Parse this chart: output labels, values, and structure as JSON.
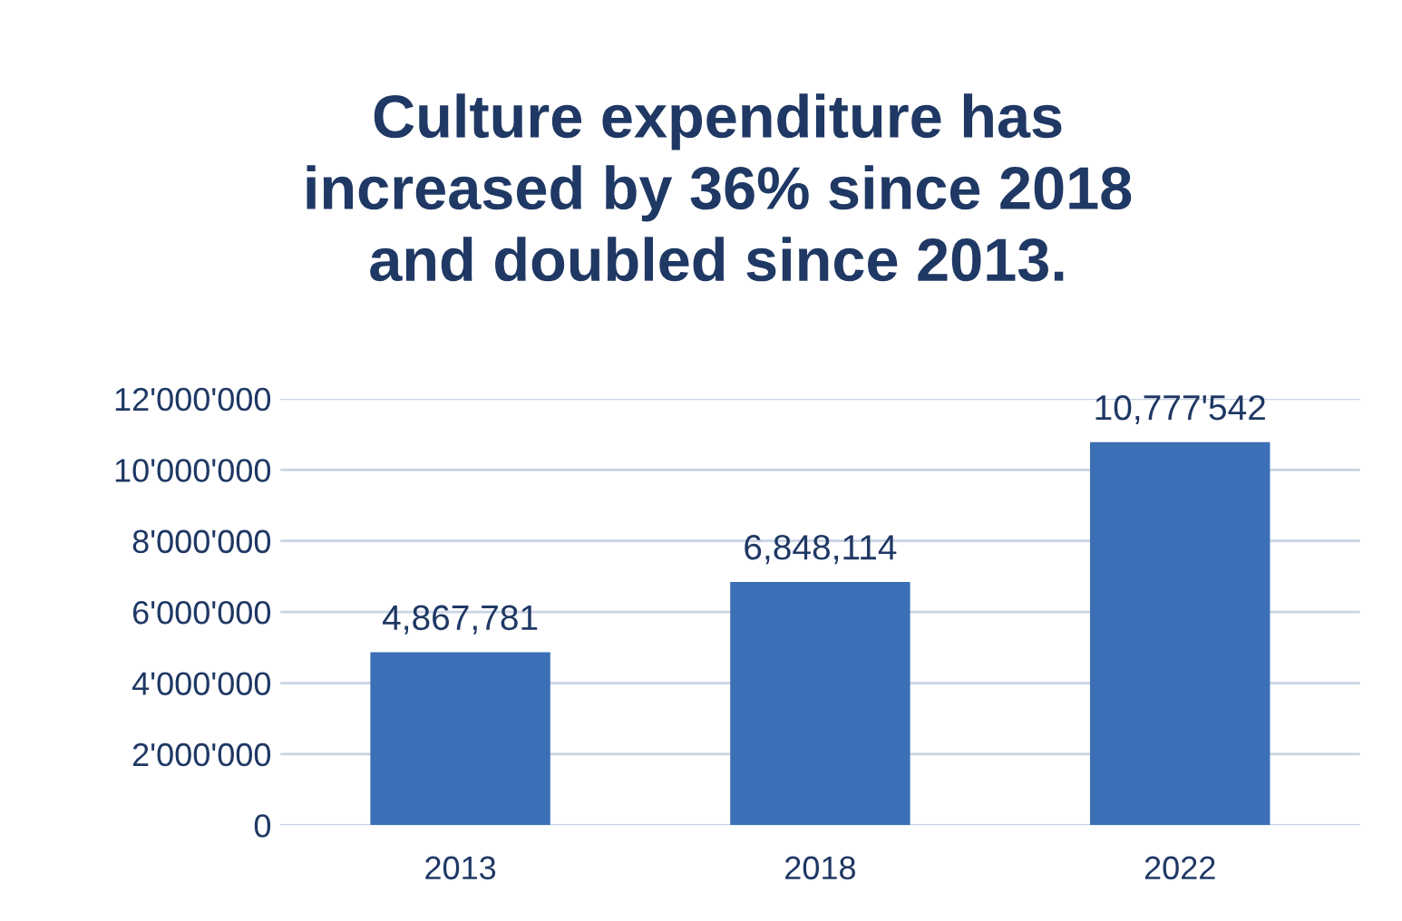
{
  "chart_data": {
    "type": "bar",
    "title": "Culture expenditure has\nincreased by 36% since 2018\nand doubled since 2013.",
    "categories": [
      "2013",
      "2018",
      "2022"
    ],
    "values": [
      4867781,
      6848114,
      10777542
    ],
    "value_labels": [
      "4,867,781",
      "6,848,114",
      "10,777'542"
    ],
    "color": "#3b6fb6",
    "ylim": [
      0,
      12000000
    ],
    "yticks": [
      0,
      {
        "value": 2000000,
        "label": "2'000'000"
      },
      {
        "value": 4000000,
        "label": "4'000'000"
      },
      {
        "value": 6000000,
        "label": "6'000'000"
      },
      {
        "value": 8000000,
        "label": "8'000'000"
      },
      {
        "value": 10000000,
        "label": "10'000'000"
      },
      {
        "value": 12000000,
        "label": "12'000'000"
      }
    ],
    "grid": "y"
  }
}
